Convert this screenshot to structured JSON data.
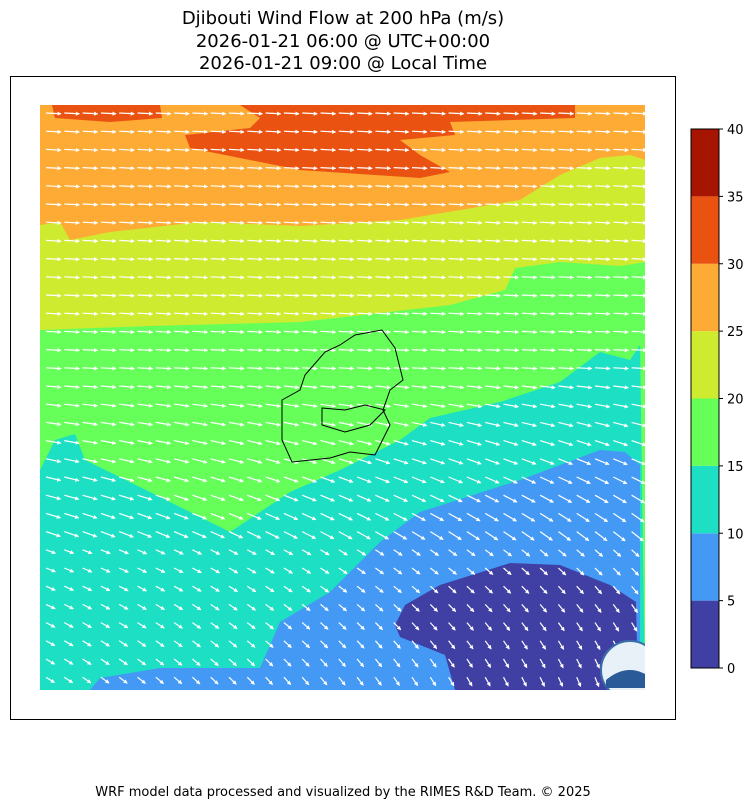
{
  "title": [
    "Djibouti Wind Flow at 200 hPa (m/s)",
    "2026-01-21 06:00 @ UTC+00:00",
    "2026-01-21 09:00 @ Local Time"
  ],
  "colorbar": {
    "ticks": [
      0,
      5,
      10,
      15,
      20,
      25,
      30,
      35,
      40
    ],
    "colors": [
      "#4040a4",
      "#4499f5",
      "#1ddfc3",
      "#66ff5a",
      "#cfeb30",
      "#fdab35",
      "#ea5211",
      "#a51502"
    ]
  },
  "logo": "RIMES",
  "footer": "WRF model data processed and visualized by the RIMES R&D Team. © 2025"
}
